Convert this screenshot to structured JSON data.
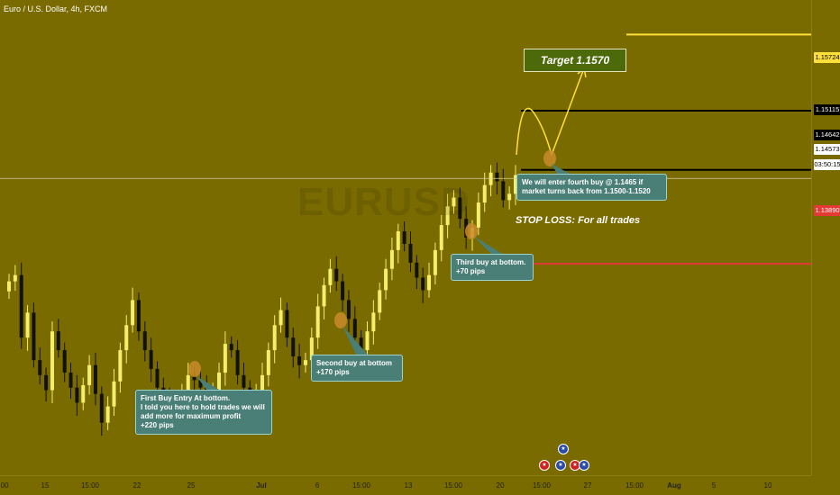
{
  "symbol": {
    "title": "Euro / U.S. Dollar, 4h, FXCM",
    "watermark": "EURUSD"
  },
  "colors": {
    "background": "#7a6b00",
    "bull_candle": "#f4ee6a",
    "bear_candle": "#111111",
    "target_line": "#ffe03a",
    "resistance_line": "#000000",
    "stop_line": "#e53935",
    "callout_bg": "#4a7f77",
    "marker": "#c98a2a"
  },
  "price_scale": {
    "labels": [
      {
        "id": "target",
        "text": "1.15724",
        "bg": "#ffe03a",
        "fg": "#000000"
      },
      {
        "id": "res1",
        "text": "1.15115",
        "bg": "#000000",
        "fg": "#ffffff"
      },
      {
        "id": "res2",
        "text": "1.14642",
        "bg": "#000000",
        "fg": "#ffffff"
      },
      {
        "id": "last",
        "text": "1.14573",
        "bg": "#ffffff",
        "fg": "#000000"
      },
      {
        "id": "countdown",
        "text": "03:50:15",
        "bg": "#ffffff",
        "fg": "#000000"
      },
      {
        "id": "stop",
        "text": "1.13890",
        "bg": "#e53935",
        "fg": "#ffffff"
      }
    ]
  },
  "time_scale": {
    "ticks": [
      "00",
      "15",
      "15:00",
      "22",
      "25",
      "Jul",
      "6",
      "15:00",
      "13",
      "15:00",
      "20",
      "15:00",
      "27",
      "15:00",
      "Aug",
      "5",
      "10"
    ],
    "visible_partial_first": ":00"
  },
  "annotations": {
    "target_label": "Target 1.1570",
    "stop_label": "STOP LOSS: For all trades",
    "callout_first": [
      "First Buy Entry At bottom.",
      "I told you here to hold trades we will",
      "add more for maximum profit",
      "+220 pips"
    ],
    "callout_second": [
      "Second buy at bottom",
      "+170 pips"
    ],
    "callout_third": [
      "Third buy at bottom.",
      "+70 pips"
    ],
    "callout_fourth": [
      "We will enter fourth buy @ 1.1465 if",
      "market turns back from 1.1500-1.1520"
    ]
  },
  "events": [
    {
      "icon": "us-flag-icon"
    },
    {
      "icon": "eu-flag-icon"
    },
    {
      "icon": "us-flag-icon"
    },
    {
      "icon": "eu-flag-icon"
    }
  ],
  "chart_data": {
    "type": "candlestick",
    "title": "Euro / U.S. Dollar, 4h, FXCM",
    "ylim": [
      1.122,
      1.16
    ],
    "levels": {
      "target": 1.15724,
      "resistance_high": 1.15115,
      "resistance_low": 1.14642,
      "last_price": 1.14573,
      "stop_loss": 1.1389
    },
    "x_tick_labels": [
      "15",
      "15:00",
      "22",
      "25",
      "Jul",
      "6",
      "15:00",
      "13",
      "15:00",
      "20",
      "15:00",
      "27",
      "15:00",
      "Aug",
      "5",
      "10"
    ],
    "close_path": [
      1.1375,
      1.138,
      1.133,
      1.135,
      1.1312,
      1.13,
      1.1288,
      1.1335,
      1.132,
      1.1302,
      1.129,
      1.1278,
      1.1292,
      1.1308,
      1.1285,
      1.1262,
      1.1275,
      1.1295,
      1.132,
      1.134,
      1.136,
      1.1335,
      1.132,
      1.1305,
      1.129,
      1.128,
      1.1272,
      1.1268,
      1.1285,
      1.13,
      1.1296,
      1.129,
      1.1275,
      1.1288,
      1.1302,
      1.1325,
      1.132,
      1.13,
      1.129,
      1.128,
      1.1285,
      1.13,
      1.132,
      1.134,
      1.1352,
      1.133,
      1.1315,
      1.1308,
      1.1312,
      1.133,
      1.1355,
      1.1372,
      1.1385,
      1.1375,
      1.136,
      1.1345,
      1.133,
      1.132,
      1.1335,
      1.135,
      1.1368,
      1.1385,
      1.14,
      1.1415,
      1.1405,
      1.139,
      1.1378,
      1.1368,
      1.138,
      1.14,
      1.142,
      1.1435,
      1.1442,
      1.1425,
      1.141,
      1.1418,
      1.1438,
      1.1452,
      1.1462,
      1.1455,
      1.144,
      1.1445,
      1.146
    ]
  }
}
